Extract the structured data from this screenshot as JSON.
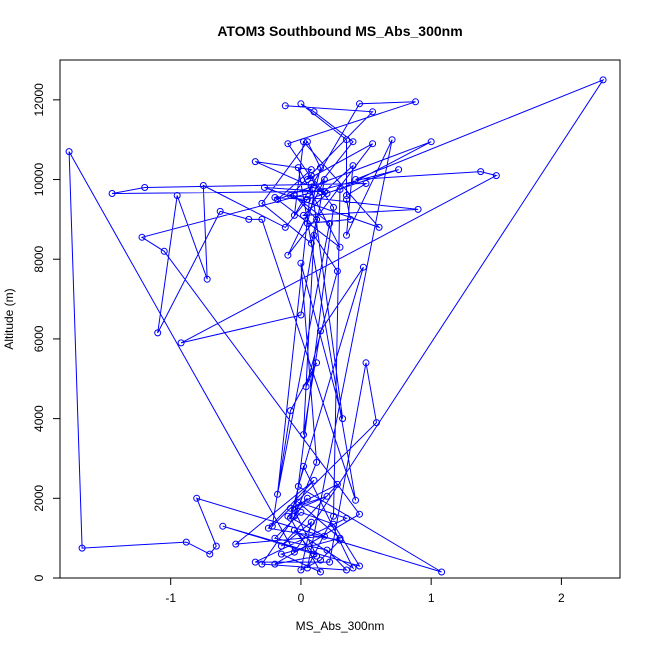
{
  "chart_data": {
    "type": "line",
    "title": "ATOM3 Southbound MS_Abs_300nm",
    "xlabel": "MS_Abs_300nm",
    "ylabel": "Altitude (m)",
    "xlim": [
      -1.85,
      2.45
    ],
    "ylim": [
      0,
      13000
    ],
    "x_ticks": [
      -1,
      0,
      1,
      2
    ],
    "y_ticks": [
      0,
      2000,
      4000,
      6000,
      8000,
      10000,
      12000
    ],
    "grid": false,
    "legend": "none",
    "marker": "open-circle",
    "series": [
      {
        "color": "#0000ff",
        "points": [
          [
            -0.12,
            11850
          ],
          [
            0.55,
            11700
          ],
          [
            -0.08,
            9600
          ],
          [
            0.9,
            9250
          ],
          [
            0.02,
            9100
          ],
          [
            0.2,
            9650
          ],
          [
            -0.35,
            10450
          ],
          [
            0.08,
            10250
          ],
          [
            -0.18,
            9500
          ],
          [
            1.0,
            10950
          ],
          [
            0.3,
            9750
          ],
          [
            0.25,
            1550
          ],
          [
            0.05,
            250
          ],
          [
            0.7,
            11000
          ],
          [
            0.35,
            8600
          ],
          [
            0.4,
            10350
          ],
          [
            0.18,
            9700
          ],
          [
            -0.28,
            9800
          ],
          [
            0.6,
            8800
          ],
          [
            0.02,
            10950
          ],
          [
            -0.05,
            9100
          ],
          [
            0.45,
            11900
          ],
          [
            0.88,
            11950
          ],
          [
            -0.1,
            10900
          ],
          [
            0.15,
            9700
          ],
          [
            -1.45,
            9650
          ],
          [
            -1.2,
            9800
          ],
          [
            0.5,
            9900
          ],
          [
            0.35,
            9600
          ],
          [
            0.35,
            11000
          ],
          [
            0.0,
            11900
          ],
          [
            0.1,
            11700
          ],
          [
            0.4,
            10950
          ],
          [
            -0.12,
            8800
          ],
          [
            -0.75,
            9850
          ],
          [
            -0.72,
            7500
          ],
          [
            -0.95,
            9600
          ],
          [
            -1.1,
            6150
          ],
          [
            -0.62,
            9200
          ],
          [
            -0.4,
            9000
          ],
          [
            -0.3,
            9000
          ],
          [
            0.42,
            1950
          ],
          [
            -0.02,
            10300
          ],
          [
            0.3,
            8300
          ],
          [
            -0.2,
            9550
          ],
          [
            0.05,
            9500
          ],
          [
            0.75,
            10250
          ],
          [
            -1.22,
            8550
          ],
          [
            -1.05,
            8200
          ],
          [
            0.45,
            1600
          ],
          [
            -0.2,
            350
          ],
          [
            0.12,
            550
          ],
          [
            -0.05,
            1700
          ],
          [
            0.2,
            2050
          ],
          [
            -0.08,
            1750
          ],
          [
            0.28,
            2350
          ],
          [
            -0.15,
            800
          ],
          [
            0.08,
            1400
          ],
          [
            0.0,
            200
          ],
          [
            0.15,
            450
          ],
          [
            0.3,
            950
          ],
          [
            -0.25,
            1250
          ],
          [
            0.1,
            2450
          ],
          [
            -0.5,
            850
          ],
          [
            0.18,
            1050
          ],
          [
            -0.1,
            1550
          ],
          [
            0.05,
            2000
          ],
          [
            -0.3,
            350
          ],
          [
            0.35,
            200
          ],
          [
            0.2,
            700
          ],
          [
            -0.2,
            1000
          ],
          [
            0.0,
            1650
          ],
          [
            0.25,
            1350
          ],
          [
            0.45,
            300
          ],
          [
            -0.6,
            1300
          ],
          [
            0.1,
            600
          ],
          [
            -0.05,
            1200
          ],
          [
            0.4,
            250
          ],
          [
            0.02,
            2800
          ],
          [
            -0.08,
            1500
          ],
          [
            0.15,
            150
          ],
          [
            -0.15,
            600
          ],
          [
            0.3,
            1000
          ],
          [
            -0.02,
            1900
          ],
          [
            0.35,
            1500
          ],
          [
            -0.35,
            400
          ],
          [
            0.22,
            400
          ],
          [
            0.5,
            5400
          ],
          [
            0.58,
            3900
          ],
          [
            -0.22,
            1300
          ],
          [
            -0.08,
            4200
          ],
          [
            0.12,
            5400
          ],
          [
            0.04,
            4800
          ],
          [
            0.28,
            7700
          ],
          [
            0.1,
            8600
          ],
          [
            0.02,
            3600
          ],
          [
            0.15,
            6200
          ],
          [
            0.48,
            7800
          ],
          [
            -0.02,
            2300
          ],
          [
            1.08,
            150
          ],
          [
            -0.8,
            2000
          ],
          [
            -0.65,
            800
          ],
          [
            -0.7,
            600
          ],
          [
            -0.88,
            900
          ],
          [
            -1.68,
            750
          ],
          [
            -1.78,
            10700
          ],
          [
            -0.05,
            650
          ],
          [
            2.32,
            12500
          ],
          [
            0.42,
            10000
          ],
          [
            1.38,
            10200
          ],
          [
            1.5,
            10100
          ],
          [
            -0.92,
            5900
          ],
          [
            0.0,
            6600
          ],
          [
            0.18,
            10000
          ],
          [
            -0.1,
            8100
          ],
          [
            0.55,
            10900
          ],
          [
            0.05,
            10000
          ],
          [
            0.08,
            10100
          ],
          [
            0.25,
            9300
          ],
          [
            -0.05,
            1550
          ],
          [
            0.12,
            2900
          ],
          [
            0.0,
            7900
          ],
          [
            0.32,
            4000
          ],
          [
            0.08,
            9900
          ],
          [
            -0.18,
            2100
          ],
          [
            0.22,
            8900
          ],
          [
            -0.05,
            9600
          ],
          [
            0.12,
            9000
          ],
          [
            0.08,
            8400
          ],
          [
            -0.3,
            9400
          ],
          [
            0.05,
            10950
          ],
          [
            0.15,
            10300
          ],
          [
            0.05,
            8900
          ],
          [
            0.38,
            9000
          ],
          [
            0.35,
            9500
          ]
        ]
      }
    ]
  }
}
